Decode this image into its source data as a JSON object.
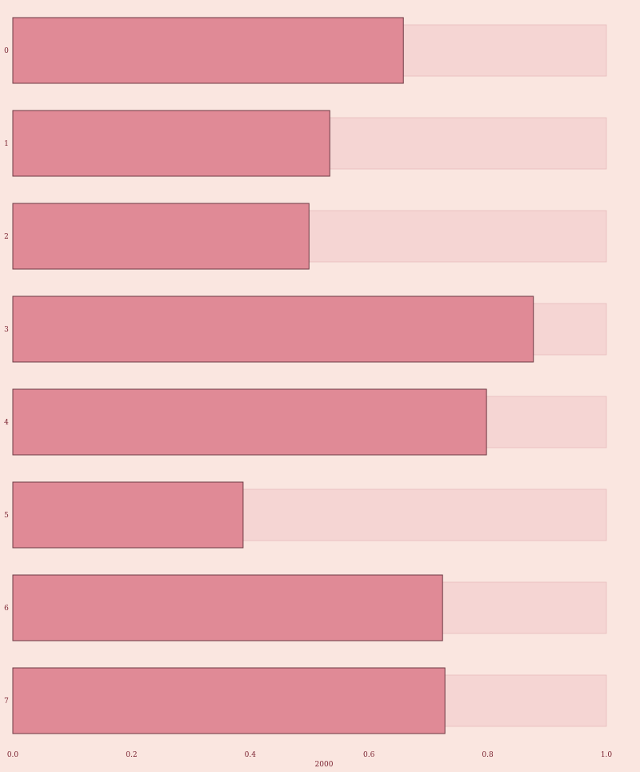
{
  "chart_data": {
    "type": "bar",
    "orientation": "horizontal",
    "categories": [
      "0",
      "1",
      "2",
      "3",
      "4",
      "5",
      "6",
      "7"
    ],
    "series": [
      {
        "values": [
          0.658,
          0.534,
          0.499,
          0.877,
          0.798,
          0.388,
          0.724,
          0.728
        ]
      }
    ],
    "background_values": [
      1,
      1,
      1,
      1,
      1,
      1,
      1,
      1
    ],
    "xlim": [
      0.0,
      1.0
    ],
    "xticks": [
      "0.0",
      "0.2",
      "0.4",
      "0.6",
      "0.8",
      "1.0"
    ],
    "xlabel": "2000",
    "ylabel": "",
    "title": "",
    "grid": false,
    "colors": {
      "background": "#fae6e0",
      "bar_fill": "#e08a96",
      "bar_stroke": "#6e3a44",
      "track_fill": "#f5d5d3",
      "track_stroke": "#e8bcbc",
      "text": "#7a2230"
    }
  }
}
